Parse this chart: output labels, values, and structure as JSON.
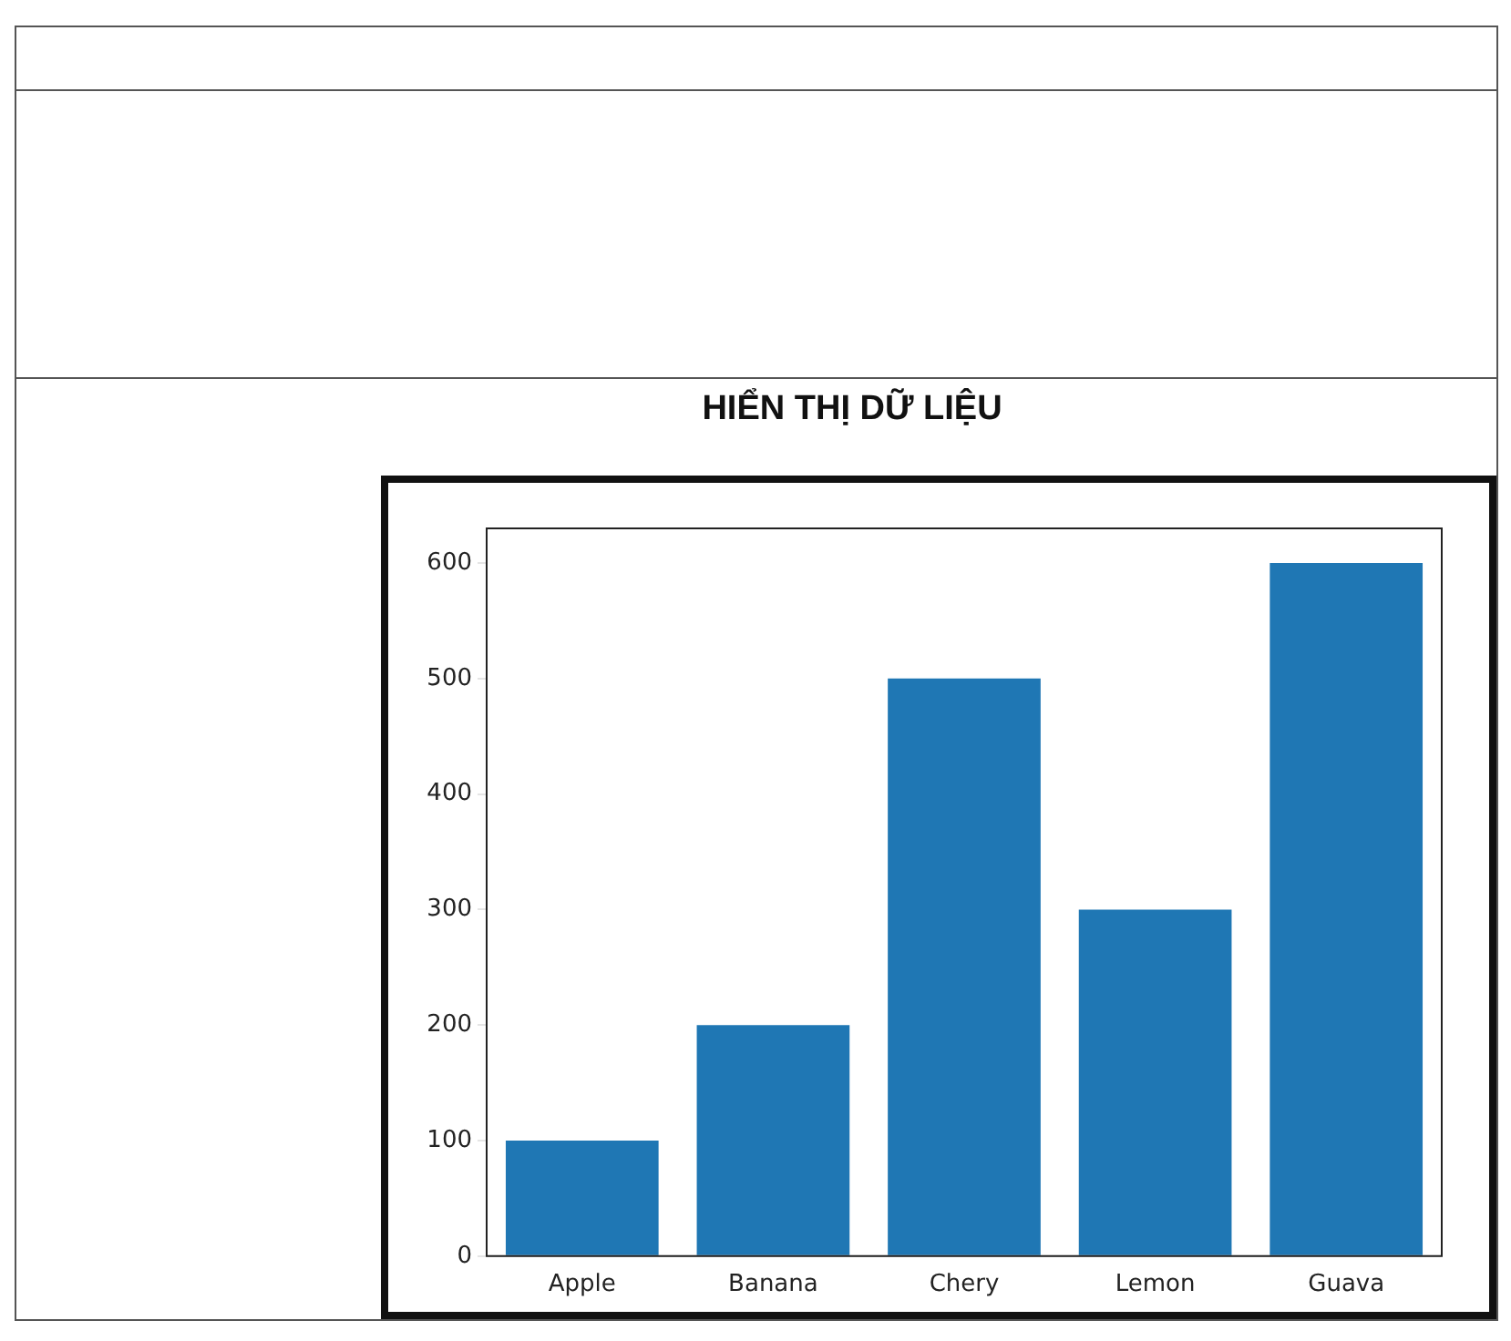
{
  "chart_data": {
    "type": "bar",
    "title": "HIỂN THỊ DỮ LIỆU",
    "categories": [
      "Apple",
      "Banana",
      "Chery",
      "Lemon",
      "Guava"
    ],
    "values": [
      100,
      200,
      500,
      300,
      600
    ],
    "color": "#1f77b4",
    "ylim": [
      0,
      630
    ],
    "yticks": [
      0,
      100,
      200,
      300,
      400,
      500,
      600
    ],
    "grid": false
  }
}
